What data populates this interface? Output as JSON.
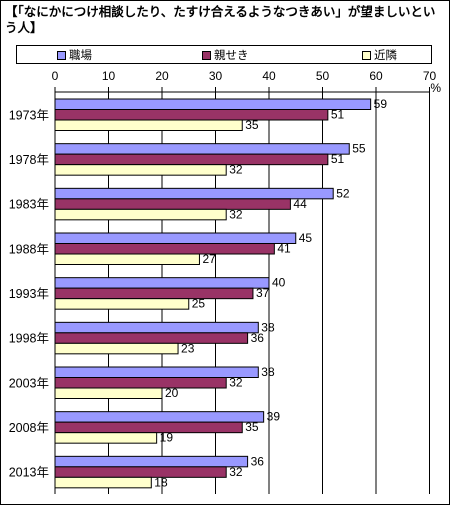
{
  "title": "【「なにかにつけ相談したり、たすけ合えるようなつきあい」が望ましいという人】",
  "chart_data": {
    "type": "bar",
    "orientation": "horizontal",
    "unit": "%",
    "xlim": [
      0,
      70
    ],
    "ticks": [
      "0",
      "10",
      "20",
      "30",
      "40",
      "50",
      "60",
      "70"
    ],
    "categories": [
      "1973年",
      "1978年",
      "1983年",
      "1988年",
      "1993年",
      "1998年",
      "2003年",
      "2008年",
      "2013年"
    ],
    "series": [
      {
        "name": "職場",
        "color": "#9999ff",
        "values": [
          59,
          55,
          52,
          45,
          40,
          38,
          38,
          39,
          36
        ]
      },
      {
        "name": "親せき",
        "color": "#993366",
        "values": [
          51,
          51,
          44,
          41,
          37,
          36,
          32,
          35,
          32
        ]
      },
      {
        "name": "近隣",
        "color": "#ffffcc",
        "values": [
          35,
          32,
          32,
          27,
          25,
          23,
          20,
          19,
          18
        ]
      }
    ],
    "legend_position": "top",
    "grid": "vertical"
  }
}
